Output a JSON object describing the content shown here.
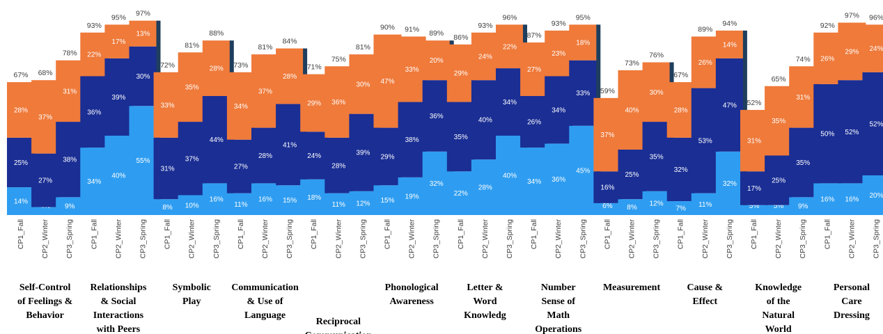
{
  "chart_data": {
    "type": "bar",
    "stacked": true,
    "title": "",
    "xlabel": "",
    "ylabel": "",
    "ylim": [
      0,
      100
    ],
    "grid": false,
    "legend": "none",
    "colors": {
      "segment1": "#2e9df1",
      "segment2": "#1a2e94",
      "segment3": "#ef7a3a",
      "group_separator": "#1f3e5e"
    },
    "groups": [
      {
        "label": "Self-Control of Feelings & Behavior",
        "bars": [
          {
            "category": "CP1_Fall",
            "segments": [
              14,
              25,
              28
            ],
            "total": 67
          },
          {
            "category": "CP2_Winter",
            "segments": [
              4,
              27,
              37
            ],
            "total": 68
          },
          {
            "category": "CP3_Spring",
            "segments": [
              9,
              38,
              31
            ],
            "total": 78
          }
        ]
      },
      {
        "label": "Relationships & Social Interactions with Peers",
        "bars": [
          {
            "category": "CP1_Fall",
            "segments": [
              34,
              36,
              22
            ],
            "total": 93
          },
          {
            "category": "CP2_Winter",
            "segments": [
              40,
              39,
              17
            ],
            "total": 95
          },
          {
            "category": "CP3_Spring",
            "segments": [
              55,
              30,
              13
            ],
            "total": 97
          }
        ]
      },
      {
        "label": "Symbolic Play",
        "bars": [
          {
            "category": "CP1_Fall",
            "segments": [
              8,
              31,
              33
            ],
            "total": 72
          },
          {
            "category": "CP2_Winter",
            "segments": [
              10,
              37,
              35
            ],
            "total": 81
          },
          {
            "category": "CP3_Spring",
            "segments": [
              16,
              44,
              28
            ],
            "total": 88
          }
        ]
      },
      {
        "label": "Communication & Use of Language",
        "bars": [
          {
            "category": "CP1_Fall",
            "segments": [
              11,
              27,
              34
            ],
            "total": 73
          },
          {
            "category": "CP2_Winter",
            "segments": [
              16,
              28,
              37
            ],
            "total": 81
          },
          {
            "category": "CP3_Spring",
            "segments": [
              15,
              41,
              28
            ],
            "total": 84
          }
        ]
      },
      {
        "label": "Reciprocal Communication",
        "bars": [
          {
            "category": "CP1_Fall",
            "segments": [
              18,
              24,
              29
            ],
            "total": 71
          },
          {
            "category": "CP2_Winter",
            "segments": [
              11,
              28,
              36
            ],
            "total": 75
          },
          {
            "category": "CP3_Spring",
            "segments": [
              12,
              39,
              30
            ],
            "total": 81
          }
        ]
      },
      {
        "label": "Phonological Awareness",
        "bars": [
          {
            "category": "CP1_Fall",
            "segments": [
              15,
              29,
              47
            ],
            "total": 90
          },
          {
            "category": "CP2_Winter",
            "segments": [
              19,
              38,
              33
            ],
            "total": 91
          },
          {
            "category": "CP3_Spring",
            "segments": [
              32,
              36,
              20
            ],
            "total": 89
          }
        ]
      },
      {
        "label": "Letter & Word Knowledg",
        "bars": [
          {
            "category": "CP1_Fall",
            "segments": [
              22,
              35,
              29
            ],
            "total": 86
          },
          {
            "category": "CP2_Winter",
            "segments": [
              28,
              40,
              24
            ],
            "total": 93
          },
          {
            "category": "CP3_Spring",
            "segments": [
              40,
              34,
              22
            ],
            "total": 96
          }
        ]
      },
      {
        "label": "Number Sense of Math Operations",
        "bars": [
          {
            "category": "CP1_Fall",
            "segments": [
              34,
              26,
              27
            ],
            "total": 87
          },
          {
            "category": "CP2_Winter",
            "segments": [
              36,
              34,
              23
            ],
            "total": 93
          },
          {
            "category": "CP3_Spring",
            "segments": [
              45,
              33,
              18
            ],
            "total": 95
          }
        ]
      },
      {
        "label": "Measurement",
        "bars": [
          {
            "category": "CP1_Fall",
            "segments": [
              6,
              16,
              37
            ],
            "total": 59
          },
          {
            "category": "CP2_Winter",
            "segments": [
              8,
              25,
              40
            ],
            "total": 73
          },
          {
            "category": "CP3_Spring",
            "segments": [
              12,
              35,
              30
            ],
            "total": 76
          }
        ]
      },
      {
        "label": "Cause & Effect",
        "bars": [
          {
            "category": "CP1_Fall",
            "segments": [
              7,
              32,
              28
            ],
            "total": 67
          },
          {
            "category": "CP2_Winter",
            "segments": [
              11,
              53,
              26
            ],
            "total": 89
          },
          {
            "category": "CP3_Spring",
            "segments": [
              32,
              47,
              14
            ],
            "total": 94
          }
        ]
      },
      {
        "label": "Knowledge of the Natural World",
        "bars": [
          {
            "category": "CP1_Fall",
            "segments": [
              5,
              17,
              31
            ],
            "total": 52
          },
          {
            "category": "CP2_Winter",
            "segments": [
              5,
              25,
              35
            ],
            "total": 65
          },
          {
            "category": "CP3_Spring",
            "segments": [
              9,
              35,
              31
            ],
            "total": 74
          }
        ]
      },
      {
        "label": "Personal Care Dressing",
        "bars": [
          {
            "category": "CP1_Fall",
            "segments": [
              16,
              50,
              26
            ],
            "total": 92
          },
          {
            "category": "CP2_Winter",
            "segments": [
              16,
              52,
              29
            ],
            "total": 97
          },
          {
            "category": "CP3_Spring",
            "segments": [
              20,
              52,
              24
            ],
            "total": 96
          }
        ]
      }
    ]
  }
}
